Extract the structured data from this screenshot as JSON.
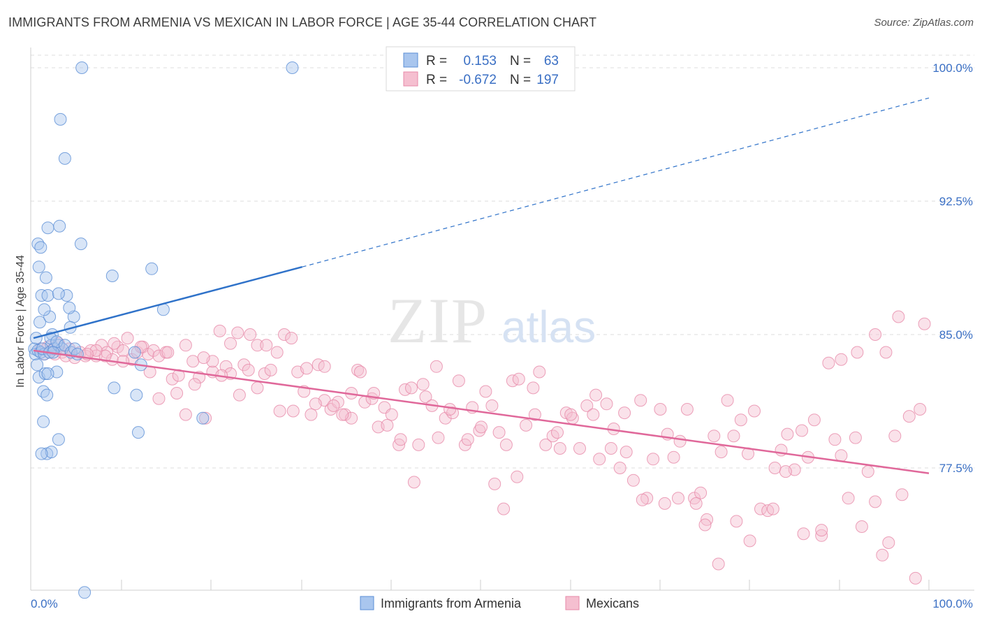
{
  "title": "IMMIGRANTS FROM ARMENIA VS MEXICAN IN LABOR FORCE | AGE 35-44 CORRELATION CHART",
  "source": "Source: ZipAtlas.com",
  "watermark": {
    "zip": "ZIP",
    "atlas": "atlas"
  },
  "colors": {
    "blue": "#5b8fd6",
    "blue_fill": "#a9c6ee",
    "blue_line": "#2f72c9",
    "pink": "#e78aa9",
    "pink_fill": "#f5bfd0",
    "pink_line": "#e0689a",
    "value_text": "#3a6fc4",
    "grid": "#dedede"
  },
  "legend": {
    "rows": [
      {
        "r_label": "R =",
        "r_value": "0.153",
        "n_label": "N =",
        "n_value": "63"
      },
      {
        "r_label": "R =",
        "r_value": "-0.672",
        "n_label": "N =",
        "n_value": "197"
      }
    ]
  },
  "bottom_legend": [
    {
      "label": "Immigrants from Armenia"
    },
    {
      "label": "Mexicans"
    }
  ],
  "chart_data": {
    "type": "scatter",
    "title": "IMMIGRANTS FROM ARMENIA VS MEXICAN IN LABOR FORCE | AGE 35-44 CORRELATION CHART",
    "xlabel": "",
    "ylabel": "In Labor Force | Age 35-44",
    "x_tick_labels": [
      "0.0%",
      "100.0%"
    ],
    "y_tick_labels": [
      "100.0%",
      "92.5%",
      "85.0%",
      "77.5%"
    ],
    "y_ticks": [
      100.0,
      92.5,
      85.0,
      77.5
    ],
    "xlim": [
      0,
      100
    ],
    "ylim": [
      70.0,
      100.7
    ],
    "grid": true,
    "series": [
      {
        "name": "Immigrants from Armenia",
        "r": 0.153,
        "n": 63,
        "trend": {
          "x0": 0,
          "y0": 84.8,
          "x1": 30,
          "y1": 88.8,
          "x_end": 100,
          "y_end": 98.3,
          "dashed_from": 30
        },
        "points": [
          [
            0.1,
            84.2
          ],
          [
            0.2,
            83.9
          ],
          [
            0.3,
            84.8
          ],
          [
            0.4,
            83.3
          ],
          [
            0.5,
            84.1
          ],
          [
            0.6,
            82.6
          ],
          [
            0.7,
            85.7
          ],
          [
            0.8,
            84.0
          ],
          [
            0.5,
            90.1
          ],
          [
            0.8,
            89.9
          ],
          [
            0.6,
            88.8
          ],
          [
            1.4,
            88.2
          ],
          [
            0.9,
            87.2
          ],
          [
            1.6,
            87.2
          ],
          [
            1.8,
            86.0
          ],
          [
            1.2,
            86.4
          ],
          [
            2.1,
            85.0
          ],
          [
            2.0,
            84.4
          ],
          [
            1.2,
            83.9
          ],
          [
            1.0,
            84.2
          ],
          [
            1.3,
            82.8
          ],
          [
            1.8,
            84.0
          ],
          [
            2.3,
            84.2
          ],
          [
            2.8,
            84.4
          ],
          [
            3.2,
            84.2
          ],
          [
            2.6,
            82.9
          ],
          [
            1.1,
            81.8
          ],
          [
            1.5,
            81.6
          ],
          [
            1.6,
            82.8
          ],
          [
            1.9,
            84.8
          ],
          [
            2.6,
            84.6
          ],
          [
            2.2,
            84.0
          ],
          [
            3.5,
            84.4
          ],
          [
            4.2,
            84.0
          ],
          [
            4.5,
            86.0
          ],
          [
            4.0,
            86.5
          ],
          [
            3.7,
            87.2
          ],
          [
            4.1,
            85.4
          ],
          [
            4.6,
            84.2
          ],
          [
            4.9,
            83.9
          ],
          [
            2.8,
            87.3
          ],
          [
            2.9,
            91.1
          ],
          [
            1.6,
            91.0
          ],
          [
            5.3,
            90.1
          ],
          [
            1.1,
            80.1
          ],
          [
            1.5,
            78.3
          ],
          [
            2.0,
            78.4
          ],
          [
            2.8,
            79.1
          ],
          [
            0.9,
            78.3
          ],
          [
            5.4,
            100.0
          ],
          [
            5.7,
            70.5
          ],
          [
            3.0,
            97.1
          ],
          [
            3.5,
            94.9
          ],
          [
            28.9,
            100.0
          ],
          [
            8.8,
            88.3
          ],
          [
            13.2,
            88.7
          ],
          [
            14.5,
            86.4
          ],
          [
            9.0,
            82.0
          ],
          [
            11.5,
            81.6
          ],
          [
            12.0,
            83.3
          ],
          [
            11.7,
            79.5
          ],
          [
            11.3,
            84.0
          ],
          [
            18.9,
            80.3
          ]
        ]
      },
      {
        "name": "Mexicans",
        "r": -0.672,
        "n": 197,
        "trend": {
          "x0": 0,
          "y0": 84.1,
          "x1": 100,
          "y1": 77.2
        },
        "points": [
          [
            0.8,
            84.2
          ],
          [
            1.2,
            83.9
          ],
          [
            1.6,
            84.3
          ],
          [
            2.0,
            84.1
          ],
          [
            2.4,
            83.9
          ],
          [
            2.8,
            84.5
          ],
          [
            3.2,
            84.0
          ],
          [
            3.6,
            83.8
          ],
          [
            4.0,
            84.2
          ],
          [
            4.6,
            83.7
          ],
          [
            5.2,
            84.0
          ],
          [
            5.8,
            83.8
          ],
          [
            6.4,
            84.1
          ],
          [
            7.0,
            83.8
          ],
          [
            7.6,
            84.4
          ],
          [
            8.2,
            84.0
          ],
          [
            8.8,
            83.6
          ],
          [
            9.4,
            84.3
          ],
          [
            10.0,
            84.1
          ],
          [
            10.5,
            84.8
          ],
          [
            11.0,
            83.6
          ],
          [
            11.6,
            84.0
          ],
          [
            12.2,
            84.3
          ],
          [
            12.8,
            83.9
          ],
          [
            13.4,
            84.1
          ],
          [
            14.0,
            83.8
          ],
          [
            14.8,
            84.0
          ],
          [
            15.5,
            82.5
          ],
          [
            16.2,
            82.7
          ],
          [
            17.0,
            84.4
          ],
          [
            17.8,
            83.5
          ],
          [
            18.5,
            82.6
          ],
          [
            19.2,
            80.3
          ],
          [
            20.0,
            82.9
          ],
          [
            20.8,
            85.2
          ],
          [
            21.5,
            83.2
          ],
          [
            22.0,
            82.8
          ],
          [
            22.8,
            85.1
          ],
          [
            23.5,
            83.3
          ],
          [
            24.2,
            85.0
          ],
          [
            25.0,
            84.4
          ],
          [
            25.8,
            82.8
          ],
          [
            26.5,
            83.0
          ],
          [
            27.2,
            84.0
          ],
          [
            28.0,
            85.0
          ],
          [
            28.8,
            84.8
          ],
          [
            29.5,
            82.9
          ],
          [
            30.2,
            81.8
          ],
          [
            31.0,
            80.5
          ],
          [
            31.8,
            83.3
          ],
          [
            32.5,
            81.3
          ],
          [
            33.2,
            80.8
          ],
          [
            34.0,
            81.2
          ],
          [
            34.8,
            80.5
          ],
          [
            35.5,
            81.7
          ],
          [
            36.2,
            83.0
          ],
          [
            37.0,
            81.2
          ],
          [
            37.8,
            81.4
          ],
          [
            38.5,
            79.8
          ],
          [
            39.2,
            80.9
          ],
          [
            40.0,
            80.5
          ],
          [
            40.8,
            78.8
          ],
          [
            41.5,
            81.9
          ],
          [
            42.2,
            82.0
          ],
          [
            43.0,
            78.8
          ],
          [
            43.8,
            81.5
          ],
          [
            44.5,
            81.0
          ],
          [
            45.2,
            79.2
          ],
          [
            46.0,
            80.3
          ],
          [
            46.8,
            80.6
          ],
          [
            47.5,
            82.4
          ],
          [
            48.2,
            78.8
          ],
          [
            49.0,
            80.9
          ],
          [
            49.8,
            79.6
          ],
          [
            50.5,
            81.8
          ],
          [
            51.2,
            81.0
          ],
          [
            52.0,
            79.5
          ],
          [
            52.8,
            78.8
          ],
          [
            53.5,
            82.4
          ],
          [
            54.2,
            82.5
          ],
          [
            55.0,
            79.9
          ],
          [
            55.8,
            82.0
          ],
          [
            56.5,
            82.9
          ],
          [
            57.2,
            78.8
          ],
          [
            58.0,
            79.3
          ],
          [
            58.8,
            78.6
          ],
          [
            59.5,
            80.6
          ],
          [
            60.2,
            80.3
          ],
          [
            61.0,
            78.6
          ],
          [
            61.8,
            81.0
          ],
          [
            62.5,
            80.5
          ],
          [
            63.2,
            78.0
          ],
          [
            64.0,
            81.1
          ],
          [
            64.8,
            79.7
          ],
          [
            65.5,
            77.5
          ],
          [
            66.2,
            78.4
          ],
          [
            67.0,
            76.8
          ],
          [
            67.8,
            81.3
          ],
          [
            68.5,
            75.8
          ],
          [
            69.2,
            78.0
          ],
          [
            70.0,
            80.8
          ],
          [
            70.8,
            79.4
          ],
          [
            71.5,
            78.1
          ],
          [
            72.2,
            79.0
          ],
          [
            73.0,
            80.8
          ],
          [
            73.8,
            75.8
          ],
          [
            74.5,
            76.1
          ],
          [
            75.2,
            74.6
          ],
          [
            76.0,
            79.3
          ],
          [
            76.8,
            78.4
          ],
          [
            77.5,
            81.3
          ],
          [
            78.2,
            79.3
          ],
          [
            79.0,
            80.2
          ],
          [
            79.8,
            78.3
          ],
          [
            80.5,
            80.7
          ],
          [
            81.2,
            75.2
          ],
          [
            82.0,
            75.1
          ],
          [
            82.8,
            77.5
          ],
          [
            83.5,
            78.5
          ],
          [
            84.2,
            79.4
          ],
          [
            85.0,
            77.4
          ],
          [
            85.8,
            79.6
          ],
          [
            86.5,
            78.1
          ],
          [
            87.2,
            80.2
          ],
          [
            88.0,
            73.7
          ],
          [
            88.8,
            83.4
          ],
          [
            89.5,
            79.1
          ],
          [
            90.2,
            78.2
          ],
          [
            91.0,
            75.8
          ],
          [
            91.8,
            79.2
          ],
          [
            92.5,
            74.2
          ],
          [
            93.2,
            77.3
          ],
          [
            94.0,
            75.6
          ],
          [
            94.8,
            72.6
          ],
          [
            95.5,
            73.3
          ],
          [
            96.2,
            79.3
          ],
          [
            97.0,
            76.0
          ],
          [
            97.8,
            80.4
          ],
          [
            98.5,
            71.3
          ],
          [
            99.0,
            80.8
          ],
          [
            99.5,
            85.6
          ],
          [
            96.6,
            86.0
          ],
          [
            95.2,
            84.0
          ],
          [
            94.0,
            85.0
          ],
          [
            92.0,
            84.0
          ],
          [
            90.2,
            83.6
          ],
          [
            88.0,
            74.0
          ],
          [
            86.0,
            73.8
          ],
          [
            84.0,
            77.3
          ],
          [
            82.6,
            75.2
          ],
          [
            80.0,
            73.4
          ],
          [
            78.5,
            74.5
          ],
          [
            76.5,
            72.1
          ],
          [
            75.0,
            74.3
          ],
          [
            74.0,
            75.5
          ],
          [
            72.0,
            75.8
          ],
          [
            70.5,
            75.5
          ],
          [
            68.0,
            75.7
          ],
          [
            66.0,
            80.6
          ],
          [
            64.5,
            78.6
          ],
          [
            62.8,
            81.6
          ],
          [
            60.0,
            80.5
          ],
          [
            58.5,
            79.5
          ],
          [
            56.0,
            80.5
          ],
          [
            54.0,
            77.0
          ],
          [
            52.5,
            75.2
          ],
          [
            51.5,
            76.6
          ],
          [
            50.0,
            79.8
          ],
          [
            48.5,
            79.1
          ],
          [
            46.5,
            80.8
          ],
          [
            45.0,
            83.2
          ],
          [
            43.5,
            82.2
          ],
          [
            42.5,
            76.7
          ],
          [
            41.0,
            79.1
          ],
          [
            39.5,
            79.9
          ],
          [
            38.0,
            81.7
          ],
          [
            36.5,
            82.9
          ],
          [
            35.5,
            80.3
          ],
          [
            34.5,
            80.5
          ],
          [
            33.5,
            81.0
          ],
          [
            32.5,
            83.2
          ],
          [
            31.5,
            81.1
          ],
          [
            30.5,
            83.1
          ],
          [
            29.0,
            80.7
          ],
          [
            27.5,
            80.7
          ],
          [
            26.0,
            84.4
          ],
          [
            25.0,
            82.0
          ],
          [
            24.0,
            83.0
          ],
          [
            23.0,
            81.6
          ],
          [
            22.0,
            84.5
          ],
          [
            21.0,
            82.7
          ],
          [
            20.0,
            83.5
          ],
          [
            19.0,
            83.7
          ],
          [
            18.0,
            82.2
          ],
          [
            17.0,
            80.5
          ],
          [
            16.0,
            81.7
          ],
          [
            15.0,
            84.0
          ],
          [
            14.0,
            81.4
          ],
          [
            13.0,
            82.9
          ],
          [
            12.0,
            84.3
          ],
          [
            10.0,
            83.5
          ],
          [
            9.0,
            84.5
          ],
          [
            8.0,
            83.8
          ],
          [
            7.0,
            84.1
          ],
          [
            6.0,
            83.9
          ]
        ]
      }
    ]
  }
}
